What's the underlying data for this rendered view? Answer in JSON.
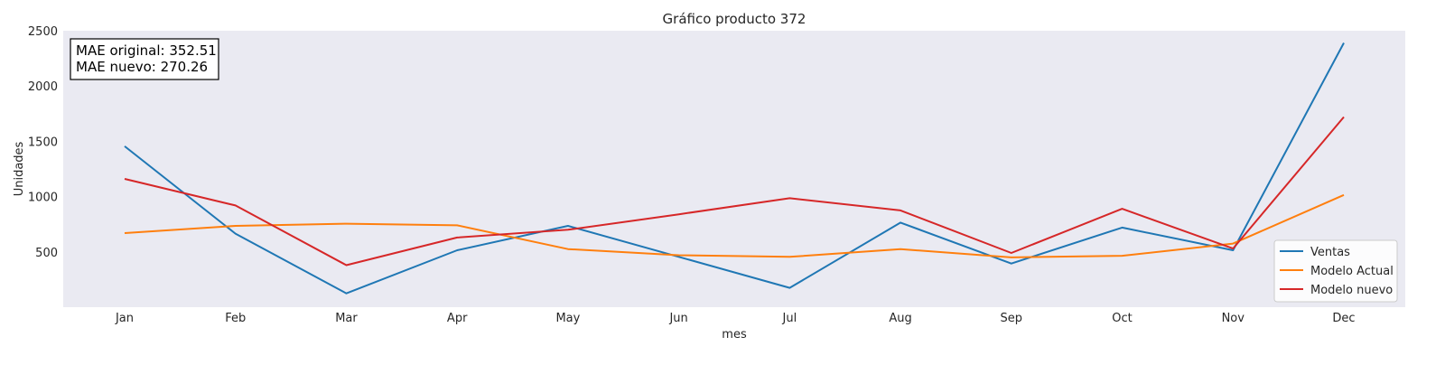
{
  "chart_data": {
    "type": "line",
    "title": "Gráfico producto 372",
    "xlabel": "mes",
    "ylabel": "Unidades",
    "categories": [
      "Jan",
      "Feb",
      "Mar",
      "Apr",
      "May",
      "Jun",
      "Jul",
      "Aug",
      "Sep",
      "Oct",
      "Nov",
      "Dec"
    ],
    "yticks": [
      500,
      1000,
      1500,
      2000,
      2500
    ],
    "ylim": [
      0,
      2500
    ],
    "grid": false,
    "legend_position": "bottom-right",
    "series": [
      {
        "name": "Ventas",
        "color": "#1f77b4",
        "values": [
          1455,
          665,
          125,
          515,
          735,
          455,
          175,
          765,
          395,
          720,
          515,
          2390
        ]
      },
      {
        "name": "Modelo Actual",
        "color": "#ff7f0e",
        "values": [
          670,
          735,
          755,
          740,
          525,
          470,
          455,
          525,
          450,
          465,
          575,
          1015
        ]
      },
      {
        "name": "Modelo nuevo",
        "color": "#d62728",
        "values": [
          1160,
          920,
          380,
          630,
          700,
          840,
          985,
          875,
          490,
          890,
          530,
          1720
        ]
      }
    ],
    "annotation": {
      "line1": "MAE original: 352.51",
      "line2": "MAE nuevo: 270.26"
    },
    "background_color": "#eaeaf2"
  }
}
